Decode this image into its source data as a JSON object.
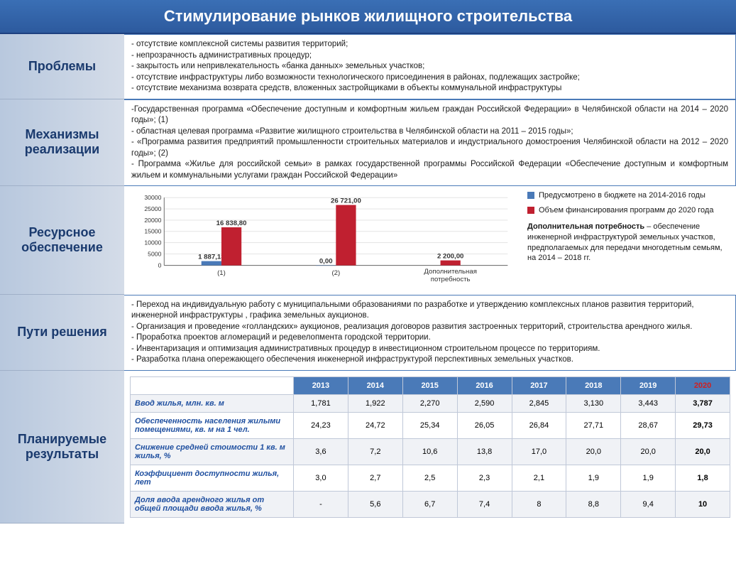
{
  "header": {
    "title": "Стимулирование рынков жилищного строительства"
  },
  "sections": {
    "problems": {
      "label": "Проблемы",
      "items": [
        "- отсутствие комплексной системы развития территорий;",
        "- непрозрачность административных процедур;",
        "- закрытость или непривлекательность «банка данных» земельных участков;",
        "- отсутствие инфраструктуры либо возможности технологического присоединения в районах, подлежащих застройке;",
        "- отсутствие механизма возврата средств, вложенных застройщиками в объекты коммунальной инфраструктуры"
      ]
    },
    "mechanisms": {
      "label": "Механизмы реализации",
      "items": [
        "-Государственная программа «Обеспечение доступным и комфортным жильем граждан Российской Федерации» в Челябинской области на 2014 – 2020 годы»; (1)",
        "- областная целевая программа «Развитие жилищного строительства в Челябинской области на 2011 – 2015 годы»;",
        "- «Программа развития предприятий промышленности строительных материалов и индустриального домостроения Челябинской области на 2012 – 2020 годы»; (2)",
        "- Программа «Жилье для российской семьи» в рамках государственной программы Российской Федерации «Обеспечение доступным и комфортным жильем и коммунальными услугами граждан Российской Федерации»"
      ]
    },
    "resources": {
      "label": "Ресурсное обеспечение",
      "chart": {
        "type": "bar",
        "ylim": [
          0,
          30000
        ],
        "ytick_step": 5000,
        "categories": [
          "(1)",
          "(2)",
          "Дополнительная потребность"
        ],
        "series": [
          {
            "name": "Предусмотрено в бюджете на 2014-2016 годы",
            "color": "#4a7ab8",
            "values": [
              1887.13,
              0.0,
              null
            ]
          },
          {
            "name": "Объем финансирования программ до 2020 года",
            "color": "#c02030",
            "values": [
              16838.8,
              26721.0,
              2200.0
            ]
          }
        ],
        "value_labels": [
          [
            "1 887,13",
            "16 838,80"
          ],
          [
            "0,00",
            "26 721,00"
          ],
          [
            "2 200,00"
          ]
        ],
        "grid_color": "#c8c8c8",
        "bar_width": 0.35
      },
      "note_bold": "Дополнительная потребность",
      "note_text": " – обеспечение инженерной инфраструктурой земельных участков, предполагаемых для передачи многодетным семьям, на 2014 – 2018 гг."
    },
    "paths": {
      "label": "Пути решения",
      "items": [
        "- Переход на индивидуальную работу с муниципальными образованиями по разработке и утверждению комплексных планов развития территорий, инженерной инфраструктуры , графика земельных аукционов.",
        "- Организация и проведение «голландских» аукционов, реализация договоров развития застроенных территорий, строительства арендного жилья.",
        "- Проработка проектов агломераций и редевелопмента городской территории.",
        "- Инвентаризация и оптимизация административных процедур в инвестиционном строительном процессе по территориям.",
        "- Разработка плана опережающего обеспечения инженерной инфраструктурой перспективных земельных участков."
      ]
    },
    "results": {
      "label": "Планируемые результаты",
      "table": {
        "years": [
          "2013",
          "2014",
          "2015",
          "2016",
          "2017",
          "2018",
          "2019",
          "2020"
        ],
        "rows": [
          {
            "label": "Ввод жилья, млн. кв. м",
            "cells": [
              "1,781",
              "1,922",
              "2,270",
              "2,590",
              "2,845",
              "3,130",
              "3,443",
              "3,787"
            ]
          },
          {
            "label": "Обеспеченность населения жилыми помещениями, кв. м на 1 чел.",
            "cells": [
              "24,23",
              "24,72",
              "25,34",
              "26,05",
              "26,84",
              "27,71",
              "28,67",
              "29,73"
            ]
          },
          {
            "label": "Снижение средней стоимости 1 кв. м жилья, %",
            "cells": [
              "3,6",
              "7,2",
              "10,6",
              "13,8",
              "17,0",
              "20,0",
              "20,0",
              "20,0"
            ]
          },
          {
            "label": "Коэффициент доступности жилья, лет",
            "cells": [
              "3,0",
              "2,7",
              "2,5",
              "2,3",
              "2,1",
              "1,9",
              "1,9",
              "1,8"
            ]
          },
          {
            "label": "Доля ввода арендного жилья от общей площади ввода жилья, %",
            "cells": [
              "-",
              "5,6",
              "6,7",
              "7,4",
              "8",
              "8,8",
              "9,4",
              "10"
            ]
          }
        ]
      }
    }
  }
}
